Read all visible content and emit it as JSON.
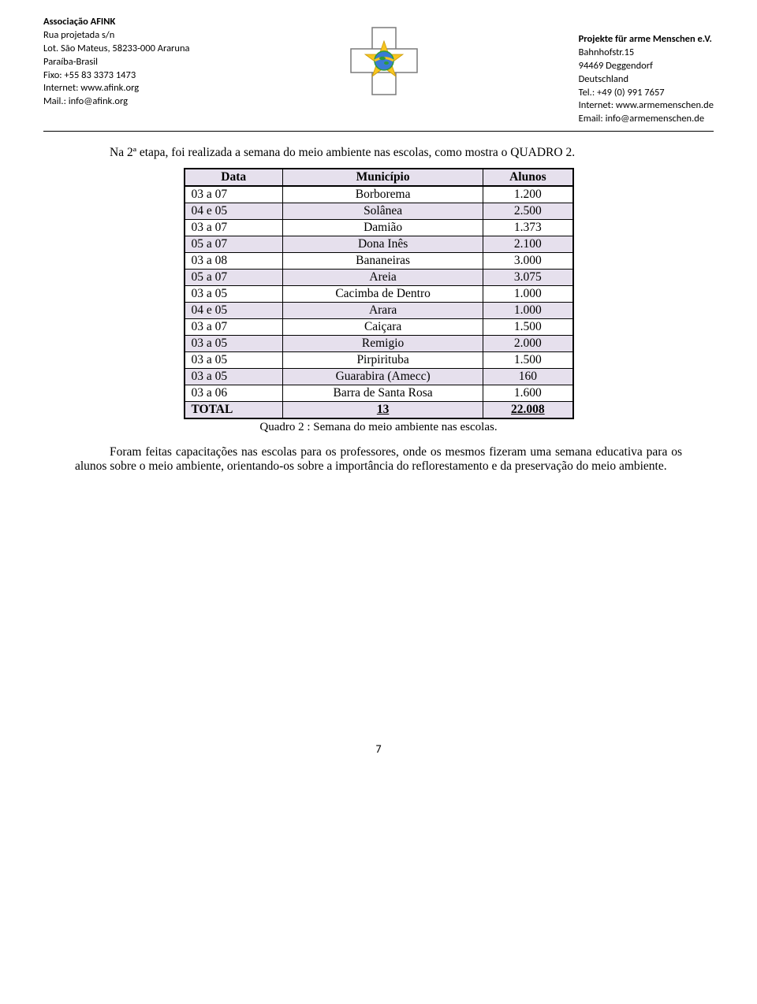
{
  "header": {
    "left": {
      "line1": "Associação AFINK",
      "line2": "Rua projetada s/n",
      "line3": "Lot. São Mateus, 58233-000 Araruna",
      "line4": "Paraíba-Brasil",
      "line5": "Fixo: +55 83 3373 1473",
      "line6": "Internet: www.afink.org",
      "line7": "Mail.: info@afink.org"
    },
    "right": {
      "line1": "Projekte für arme Menschen e.V.",
      "line2": "Bahnhofstr.15",
      "line3": "94469 Deggendorf",
      "line4": "Deutschland",
      "line5": "Tel.: +49 (0) 991 7657",
      "line6": "Internet: www.armemenschen.de",
      "line7": "Email: info@armemenschen.de"
    }
  },
  "intro_text": "Na 2ª etapa, foi realizada a semana do meio ambiente nas escolas, como mostra o QUADRO 2.",
  "table": {
    "type": "table",
    "background_even": "#e6e0ed",
    "background_odd": "#ffffff",
    "border_color": "#000000",
    "columns": [
      "Data",
      "Município",
      "Alunos"
    ],
    "rows": [
      [
        "03 a 07",
        "Borborema",
        "1.200"
      ],
      [
        "04 e 05",
        "Solânea",
        "2.500"
      ],
      [
        "03 a 07",
        "Damião",
        "1.373"
      ],
      [
        "05 a 07",
        "Dona Inês",
        "2.100"
      ],
      [
        "03 a 08",
        "Bananeiras",
        "3.000"
      ],
      [
        "05 a 07",
        "Areia",
        "3.075"
      ],
      [
        "03 a 05",
        "Cacimba de Dentro",
        "1.000"
      ],
      [
        "04 e 05",
        "Arara",
        "1.000"
      ],
      [
        "03 a 07",
        "Caiçara",
        "1.500"
      ],
      [
        "03 a 05",
        "Remigio",
        "2.000"
      ],
      [
        "03 a 05",
        "Pirpirituba",
        "1.500"
      ],
      [
        "03 a 05",
        "Guarabira (Amecc)",
        "160"
      ],
      [
        "03 a 06",
        "Barra de Santa Rosa",
        "1.600"
      ]
    ],
    "total_row": [
      "TOTAL",
      "13",
      "22.008"
    ]
  },
  "caption": "Quadro 2 : Semana do meio ambiente nas escolas.",
  "paragraph": "Foram feitas capacitações nas escolas para os professores, onde os mesmos fizeram uma semana educativa para os alunos sobre o meio ambiente, orientando-os sobre a importância do reflorestamento e da preservação do meio ambiente.",
  "page_number": "7",
  "logo_colors": {
    "cross_fill": "#ffffff",
    "cross_stroke": "#7a7a7a",
    "star_fill": "#f7c51f",
    "globe_fill": "#3a7bd5",
    "globe_band": "#f7c51f",
    "globe_land": "#2e9b3a",
    "globe_stroke": "#2e9b3a"
  }
}
